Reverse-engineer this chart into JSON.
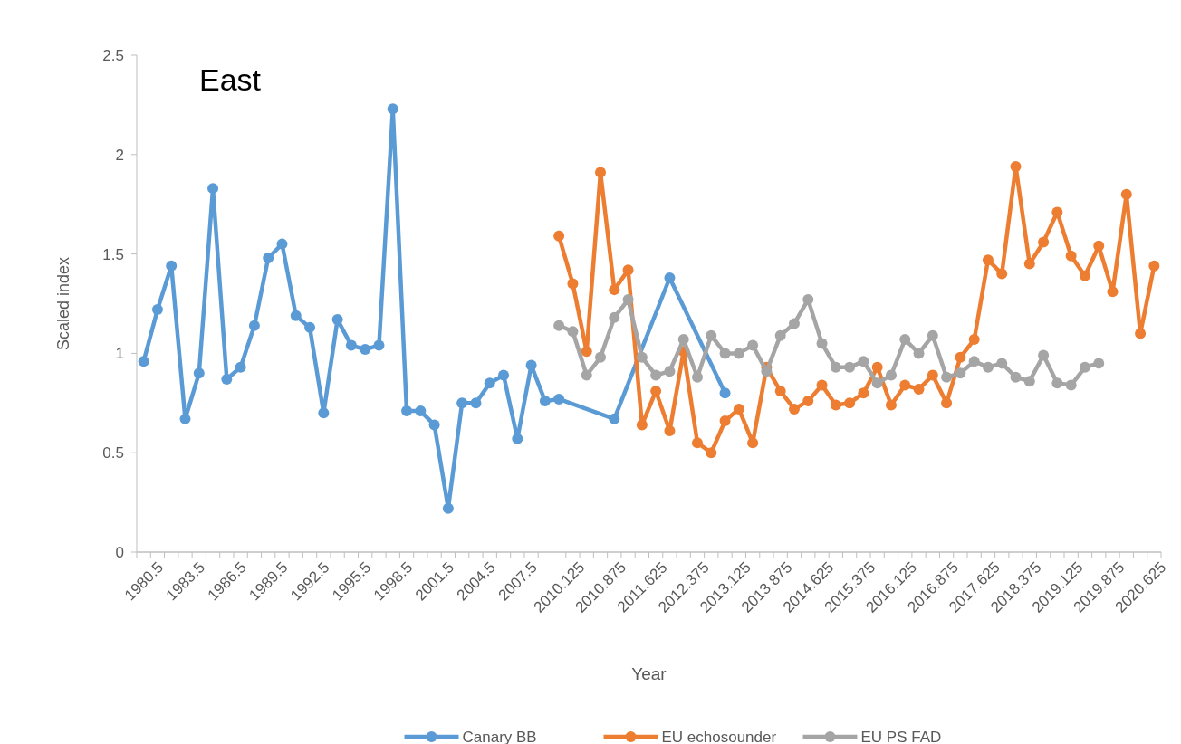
{
  "chart_data": {
    "type": "line",
    "title": "East",
    "xlabel": "Year",
    "ylabel": "Scaled index",
    "categories": [
      "1980.5",
      null,
      null,
      "1983.5",
      null,
      null,
      "1986.5",
      null,
      null,
      "1989.5",
      null,
      null,
      "1992.5",
      null,
      null,
      "1995.5",
      null,
      null,
      "1998.5",
      null,
      null,
      "2001.5",
      null,
      null,
      "2004.5",
      null,
      null,
      "2007.5",
      null,
      null,
      "2010.125",
      null,
      null,
      "2010.875",
      null,
      null,
      "2011.625",
      null,
      null,
      "2012.375",
      null,
      null,
      "2013.125",
      null,
      null,
      "2013.875",
      null,
      null,
      "2014.625",
      null,
      null,
      "2015.375",
      null,
      null,
      "2016.125",
      null,
      null,
      "2016.875",
      null,
      null,
      "2017.625",
      null,
      null,
      "2018.375",
      null,
      null,
      "2019.125",
      null,
      null,
      "2019.875",
      null,
      null,
      "2020.625",
      null
    ],
    "series": [
      {
        "name": "Canary BB",
        "color": "#5b9bd5",
        "values": [
          0.96,
          1.22,
          1.44,
          0.67,
          0.9,
          1.83,
          0.87,
          0.93,
          1.14,
          1.48,
          1.55,
          1.19,
          1.13,
          0.7,
          1.17,
          1.04,
          1.02,
          1.04,
          2.23,
          0.71,
          0.71,
          0.64,
          0.22,
          0.75,
          0.75,
          0.85,
          0.89,
          0.57,
          0.94,
          0.76,
          0.77,
          null,
          null,
          null,
          0.67,
          null,
          null,
          null,
          1.38,
          null,
          null,
          null,
          0.8,
          null,
          null,
          null,
          null,
          null,
          null,
          null,
          null,
          null,
          null,
          null,
          null,
          null,
          null,
          null,
          null,
          null,
          null,
          null,
          null,
          null,
          null,
          null,
          null,
          null,
          null,
          null,
          null,
          null,
          null,
          null
        ]
      },
      {
        "name": "EU echosounder",
        "color": "#ed7d31",
        "values": [
          null,
          null,
          null,
          null,
          null,
          null,
          null,
          null,
          null,
          null,
          null,
          null,
          null,
          null,
          null,
          null,
          null,
          null,
          null,
          null,
          null,
          null,
          null,
          null,
          null,
          null,
          null,
          null,
          null,
          null,
          1.59,
          1.35,
          1.01,
          1.91,
          1.32,
          1.42,
          0.64,
          0.81,
          0.61,
          1.01,
          0.55,
          0.5,
          0.66,
          0.72,
          0.55,
          0.93,
          0.81,
          0.72,
          0.76,
          0.84,
          0.74,
          0.75,
          0.8,
          0.93,
          0.74,
          0.84,
          0.82,
          0.89,
          0.75,
          0.98,
          1.07,
          1.47,
          1.4,
          1.94,
          1.45,
          1.56,
          1.71,
          1.49,
          1.39,
          1.54,
          1.31,
          1.8,
          1.1,
          1.44
        ]
      },
      {
        "name": "EU PS FAD",
        "color": "#a5a5a5",
        "values": [
          null,
          null,
          null,
          null,
          null,
          null,
          null,
          null,
          null,
          null,
          null,
          null,
          null,
          null,
          null,
          null,
          null,
          null,
          null,
          null,
          null,
          null,
          null,
          null,
          null,
          null,
          null,
          null,
          null,
          null,
          1.14,
          1.11,
          0.89,
          0.98,
          1.18,
          1.27,
          0.98,
          0.89,
          0.91,
          1.07,
          0.88,
          1.09,
          1.0,
          1.0,
          1.04,
          0.91,
          1.09,
          1.15,
          1.27,
          1.05,
          0.93,
          0.93,
          0.96,
          0.85,
          0.89,
          1.07,
          1.0,
          1.09,
          0.88,
          0.9,
          0.96,
          0.93,
          0.95,
          0.88,
          0.86,
          0.99,
          0.85,
          0.84,
          0.93,
          0.95,
          null,
          null,
          null,
          null
        ]
      }
    ],
    "ylim": [
      0,
      2.5
    ],
    "yticks": [
      0,
      0.5,
      1,
      1.5,
      2,
      2.5
    ],
    "grid": false,
    "legend": "bottom",
    "marker": "circle",
    "line_style": "solid"
  }
}
